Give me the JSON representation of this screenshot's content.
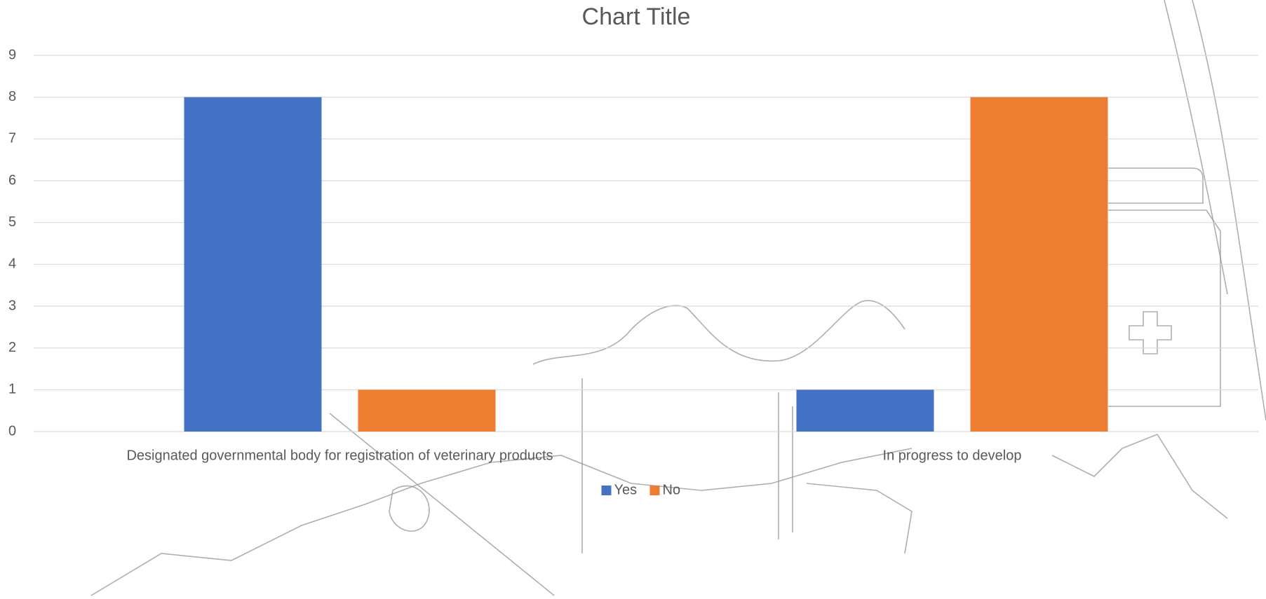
{
  "chart_data": {
    "type": "bar",
    "title": "Chart Title",
    "categories": [
      "Designated governmental body for registration of veterinary products",
      "In progress to develop"
    ],
    "series": [
      {
        "name": "Yes",
        "color": "#4472c4",
        "values": [
          8,
          1
        ]
      },
      {
        "name": "No",
        "color": "#ed7d31",
        "values": [
          1,
          8
        ]
      }
    ],
    "ylim": [
      0,
      9
    ],
    "yticks": [
      0,
      1,
      2,
      3,
      4,
      5,
      6,
      7,
      8,
      9
    ],
    "grid": true,
    "legend": "bottom"
  }
}
